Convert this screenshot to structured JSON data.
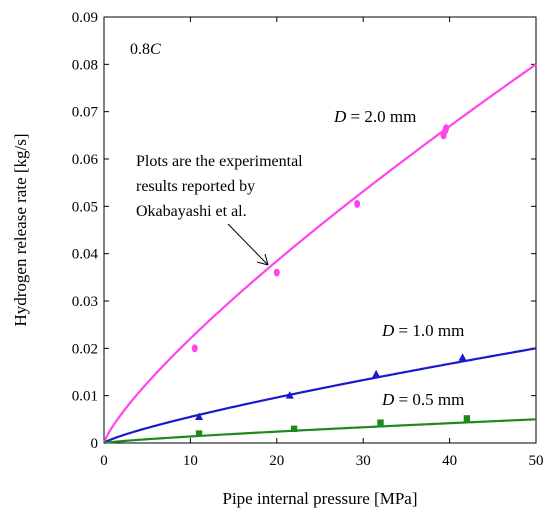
{
  "chart_data": {
    "type": "scatter",
    "xlabel": "Pipe internal pressure [MPa]",
    "ylabel": "Hydrogen release rate [kg/s]",
    "xlim": [
      0,
      50
    ],
    "ylim": [
      0,
      0.09
    ],
    "x_ticks": [
      "0",
      "10",
      "20",
      "30",
      "40",
      "50"
    ],
    "y_ticks": [
      "0",
      "0.01",
      "0.02",
      "0.03",
      "0.04",
      "0.05",
      "0.06",
      "0.07",
      "0.08",
      "0.09"
    ],
    "grid": false,
    "condition_label": {
      "prefix": "0.8",
      "italic": "C"
    },
    "annotation": {
      "lines": [
        "Plots are the experimental",
        "results reported by",
        "Okabayashi et al."
      ]
    },
    "series": [
      {
        "label_italic": "D",
        "label_rest": " = 2.0 mm",
        "color": "#ff44ee",
        "marker": "circle",
        "curve_end": [
          50,
          0.08
        ],
        "curve_exponent": 0.8,
        "points": [
          [
            10.5,
            0.02
          ],
          [
            20,
            0.036
          ],
          [
            29.3,
            0.0505
          ],
          [
            39.3,
            0.065
          ],
          [
            39.5,
            0.066
          ],
          [
            39.6,
            0.0665
          ]
        ]
      },
      {
        "label_italic": "D",
        "label_rest": " = 1.0 mm",
        "color": "#1a1acc",
        "marker": "triangle",
        "curve_end": [
          50,
          0.02
        ],
        "curve_exponent": 0.8,
        "points": [
          [
            11,
            0.0055
          ],
          [
            21.5,
            0.01
          ],
          [
            31.5,
            0.0145
          ],
          [
            41.5,
            0.018
          ]
        ]
      },
      {
        "label_italic": "D",
        "label_rest": " = 0.5 mm",
        "color": "#1e8a1e",
        "marker": "square",
        "curve_end": [
          50,
          0.005
        ],
        "curve_exponent": 0.8,
        "points": [
          [
            11,
            0.002
          ],
          [
            22,
            0.003
          ],
          [
            32,
            0.0043
          ],
          [
            42,
            0.0052
          ]
        ]
      }
    ]
  }
}
